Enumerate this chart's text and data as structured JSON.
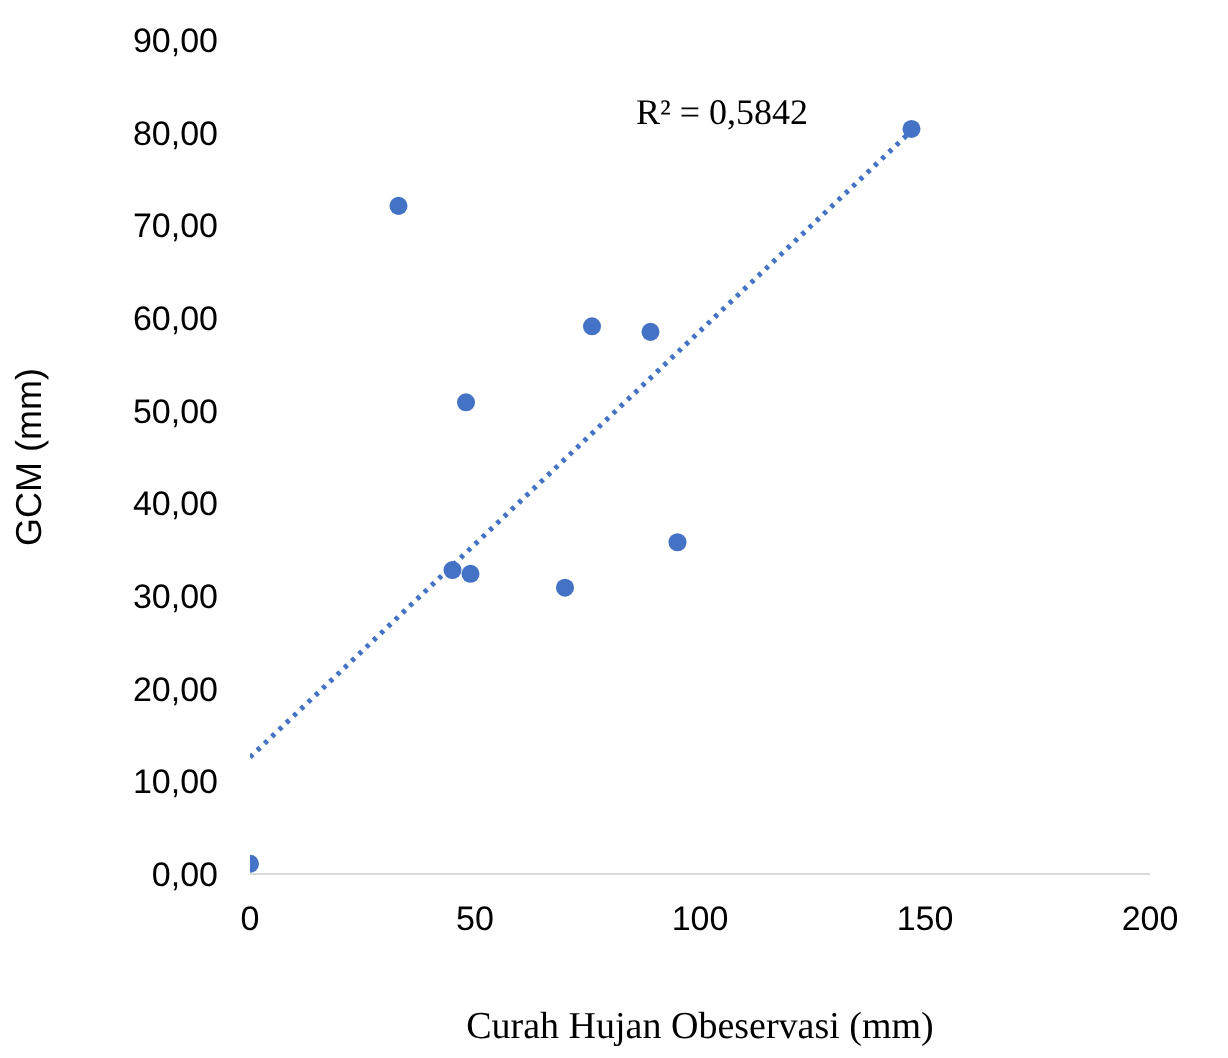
{
  "chart_data": {
    "type": "scatter",
    "xlabel": "Curah Hujan Obeservasi (mm)",
    "ylabel": "GCM (mm)",
    "xlim": [
      0,
      200
    ],
    "xticks": [
      0,
      50,
      100,
      150,
      200
    ],
    "ylim": [
      0,
      90
    ],
    "yticks": [
      {
        "value": 0,
        "label": "0,00"
      },
      {
        "value": 10,
        "label": "10,00"
      },
      {
        "value": 20,
        "label": "20,00"
      },
      {
        "value": 30,
        "label": "30,00"
      },
      {
        "value": 40,
        "label": "40,00"
      },
      {
        "value": 50,
        "label": "50,00"
      },
      {
        "value": 60,
        "label": "60,00"
      },
      {
        "value": 70,
        "label": "70,00"
      },
      {
        "value": 80,
        "label": "80,00"
      },
      {
        "value": 90,
        "label": "90,00"
      }
    ],
    "marker": "none",
    "series": [
      {
        "marker": "circle",
        "color": "#4472c4",
        "x": [
          0,
          33,
          45,
          48,
          49,
          70,
          76,
          89,
          95,
          147
        ],
        "values": [
          1.1,
          72.1,
          32.8,
          50.9,
          32.4,
          30.9,
          59.1,
          58.5,
          35.8,
          80.4
        ]
      },
      {
        "type": "line",
        "color": "#4472c4",
        "line_style": "dotted",
        "x": [
          0,
          147
        ],
        "values": [
          12.6,
          80.2
        ]
      }
    ],
    "annotations": [
      "R² = 0,5842"
    ]
  }
}
